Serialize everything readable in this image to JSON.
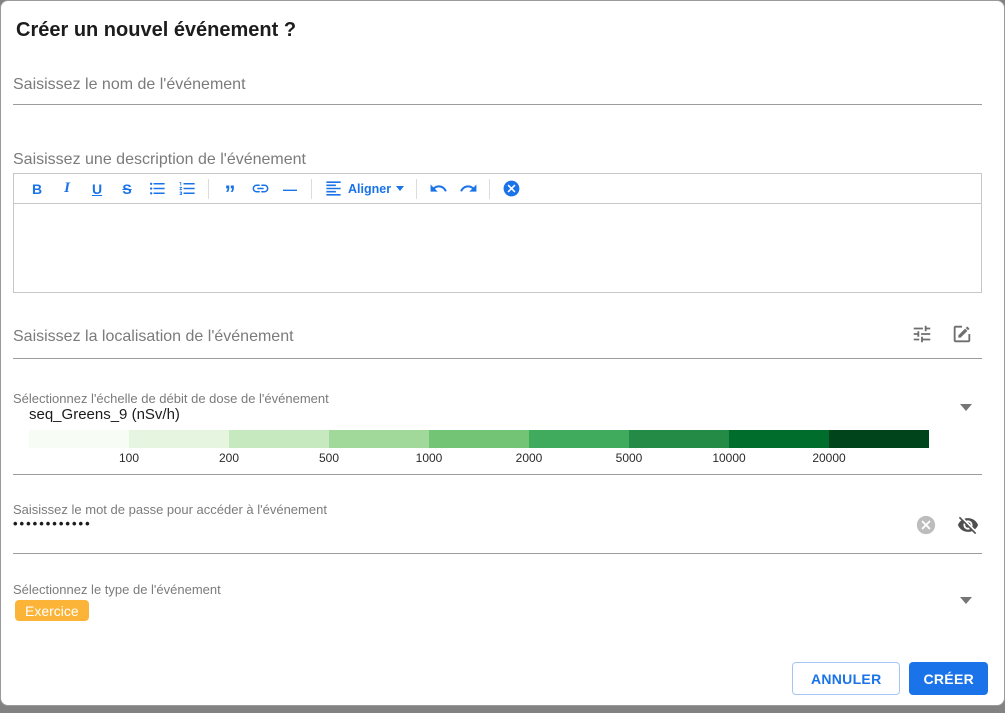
{
  "dialog": {
    "title": "Créer un nouvel événement ?",
    "accent_color": "#1a73e8",
    "name": {
      "placeholder": "Saisissez le nom de l'événement"
    },
    "description": {
      "placeholder": "Saisissez une description de l'événement",
      "toolbar": {
        "bold_label": "B",
        "italic_label": "I",
        "underline_label": "U",
        "strikethrough_label": "S",
        "quote_label": "”",
        "horizontal_rule_label": "—",
        "align_label": "Aligner"
      },
      "content": ""
    },
    "location": {
      "placeholder": "Saisissez la localisation de l'événement"
    },
    "scale": {
      "label": "Sélectionnez l'échelle de débit de dose de l'événement",
      "value": "seq_Greens_9 (nSv/h)",
      "ticks": [
        "100",
        "200",
        "500",
        "1000",
        "2000",
        "5000",
        "10000",
        "20000"
      ],
      "colors": [
        "#f7fcf5",
        "#e5f5e0",
        "#c7e9c0",
        "#a1d99b",
        "#74c476",
        "#41ab5d",
        "#238b45",
        "#006d2c",
        "#00441b"
      ]
    },
    "password": {
      "label": "Saisissez le mot de passe pour accéder à l'événement",
      "masked_value": "••••••••••••"
    },
    "type": {
      "label": "Sélectionnez le type de l'événement",
      "value": "Exercice",
      "chip_color": "#fbb437"
    },
    "actions": {
      "cancel_label": "ANNULER",
      "create_label": "CRÉER"
    }
  }
}
